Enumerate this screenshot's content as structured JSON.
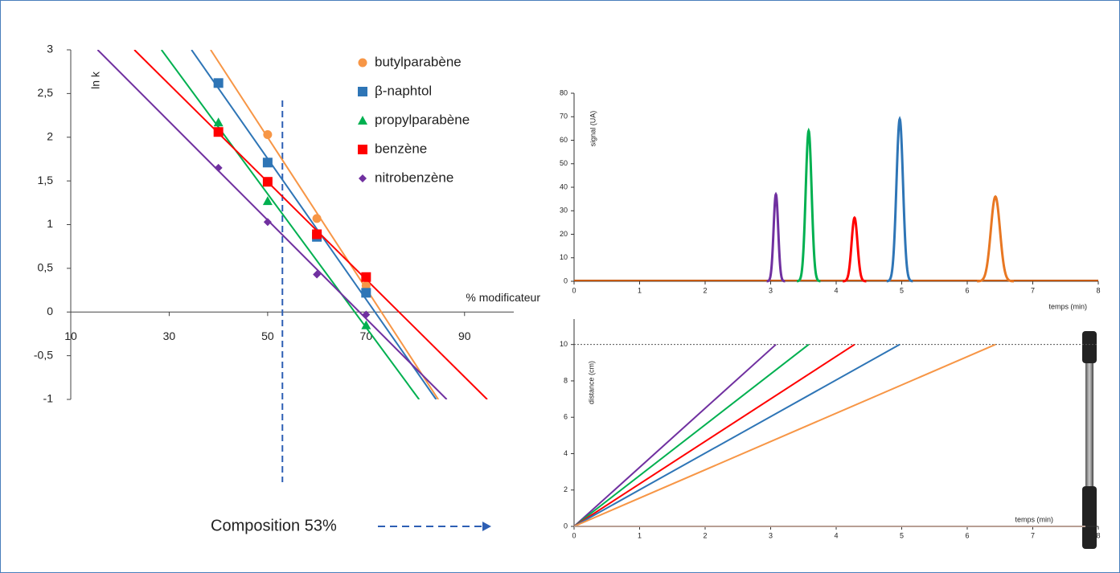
{
  "chart_data": [
    {
      "type": "scatter-fit",
      "ylabel": "ln k",
      "xlabel": "% modificateur",
      "xlim": [
        10,
        100
      ],
      "xticks": [
        10,
        30,
        50,
        70,
        90
      ],
      "ylim": [
        -1,
        3
      ],
      "yticks": [
        {
          "value": -1,
          "label": "-1"
        },
        {
          "value": -0.5,
          "label": "-0,5"
        },
        0,
        {
          "value": 0.5,
          "label": "0,5"
        },
        1,
        {
          "value": 1.5,
          "label": "1,5"
        },
        2,
        {
          "value": 2.5,
          "label": "2,5"
        },
        3
      ],
      "composition": {
        "value": 53,
        "label": "Composition 53%"
      },
      "series": [
        {
          "name": "butylparabène",
          "color": "#f79646",
          "marker": "circle",
          "x": [
            50,
            60,
            70
          ],
          "values": [
            2.03,
            1.07,
            0.3
          ]
        },
        {
          "name": "β-naphtol",
          "color": "#2e75b6",
          "marker": "square",
          "x": [
            40,
            50,
            60,
            70
          ],
          "values": [
            2.62,
            1.71,
            0.86,
            0.22
          ]
        },
        {
          "name": "propylparabène",
          "color": "#00b050",
          "marker": "triangle",
          "x": [
            40,
            50,
            70
          ],
          "values": [
            2.17,
            1.27,
            -0.15
          ]
        },
        {
          "name": "benzène",
          "color": "#ff0000",
          "marker": "square",
          "x": [
            40,
            50,
            60,
            70
          ],
          "values": [
            2.06,
            1.49,
            0.89,
            0.4
          ]
        },
        {
          "name": "nitrobenzène",
          "color": "#7030a0",
          "marker": "diamond",
          "x": [
            40,
            50,
            60,
            70
          ],
          "values": [
            1.65,
            1.03,
            0.43,
            -0.03
          ]
        }
      ]
    },
    {
      "type": "chromatogram",
      "ylabel": "signal (UA)",
      "xlabel": "temps (min)",
      "xlim": [
        0,
        8
      ],
      "xticks": [
        0,
        1,
        2,
        3,
        4,
        5,
        6,
        7,
        8
      ],
      "ylim": [
        0,
        80
      ],
      "yticks": [
        0,
        10,
        20,
        30,
        40,
        50,
        60,
        70,
        80
      ],
      "peaks": [
        {
          "color": "#7030a0",
          "x": 3.08,
          "y": 37,
          "sigma": 0.035
        },
        {
          "color": "#00b050",
          "x": 3.58,
          "y": 64,
          "sigma": 0.045
        },
        {
          "color": "#ff0000",
          "x": 4.28,
          "y": 27,
          "sigma": 0.045
        },
        {
          "color": "#2e75b6",
          "x": 4.97,
          "y": 69,
          "sigma": 0.05
        },
        {
          "color": "#e87722",
          "x": 6.43,
          "y": 36,
          "sigma": 0.07
        }
      ]
    },
    {
      "type": "line",
      "ylabel": "distance (cm)",
      "xlabel": "temps (min)",
      "xlim": [
        0,
        8
      ],
      "xticks": [
        0,
        1,
        2,
        3,
        4,
        5,
        6,
        7,
        8
      ],
      "ylim": [
        0,
        11.4
      ],
      "yticks": [
        0,
        2,
        4,
        6,
        8,
        10
      ],
      "hline": 10,
      "series": [
        {
          "color": "#7030a0",
          "x": [
            0,
            3.08
          ],
          "values": [
            0,
            10
          ]
        },
        {
          "color": "#00b050",
          "x": [
            0,
            3.58
          ],
          "values": [
            0,
            10
          ]
        },
        {
          "color": "#ff0000",
          "x": [
            0,
            4.28
          ],
          "values": [
            0,
            10
          ]
        },
        {
          "color": "#2e75b6",
          "x": [
            0,
            4.97
          ],
          "values": [
            0,
            10
          ]
        },
        {
          "color": "#f79646",
          "x": [
            0,
            6.43
          ],
          "values": [
            0,
            10
          ]
        }
      ]
    }
  ]
}
